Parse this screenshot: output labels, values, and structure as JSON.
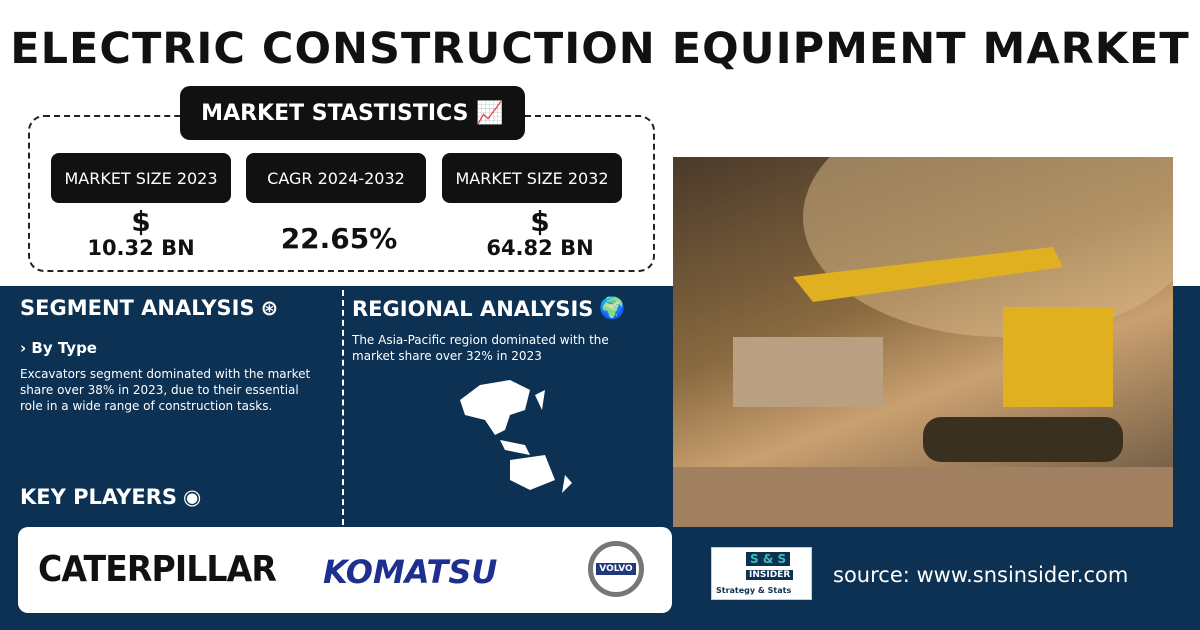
{
  "title": "ELECTRIC CONSTRUCTION EQUIPMENT MARKET",
  "stats": {
    "heading": "MARKET STASTISTICS",
    "items": [
      {
        "label": "MARKET SIZE 2023",
        "currency": "$",
        "value": "10.32 BN"
      },
      {
        "label": "CAGR 2024-2032",
        "value": "22.65%"
      },
      {
        "label": "MARKET SIZE 2032",
        "currency": "$",
        "value": "64.82 BN"
      }
    ]
  },
  "segment": {
    "heading": "SEGMENT ANALYSIS",
    "sub": "› By Type",
    "text": "Excavators segment dominated with the market share over 38% in 2023, due to their essential role in a wide range of construction tasks."
  },
  "regional": {
    "heading": "REGIONAL ANALYSIS",
    "text": "The Asia-Pacific region dominated with the market share over 32% in 2023"
  },
  "key_players": {
    "heading": "KEY PLAYERS",
    "logos": [
      "CATERPILLAR",
      "KOMATSU",
      "VOLVO"
    ]
  },
  "source_logo": {
    "top": "S & S",
    "mid": "INSIDER",
    "bottom": "Strategy & Stats"
  },
  "source": "source: www.snsinsider.com",
  "colors": {
    "navy": "#0d3153",
    "komatsu": "#1e2f8f",
    "teal": "#3bbfb5"
  }
}
